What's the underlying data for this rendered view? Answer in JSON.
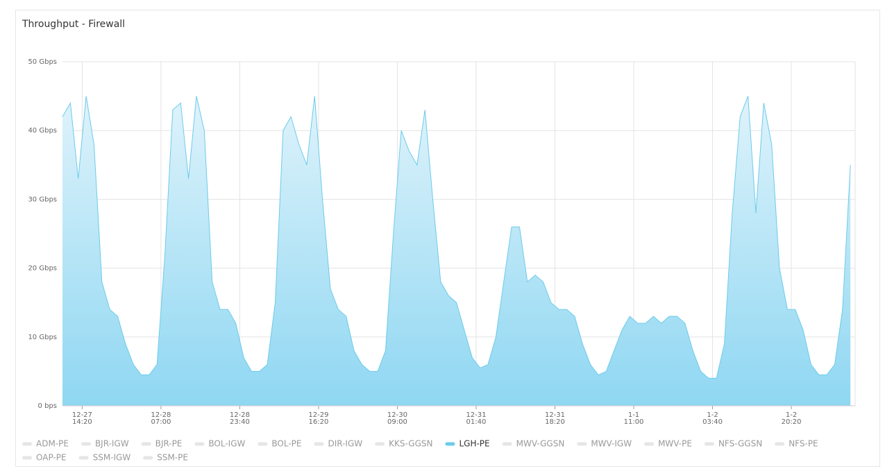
{
  "chart_data": {
    "type": "area",
    "title": "Throughput - Firewall",
    "x": [
      "12-27 10:10",
      "12-27 11:50",
      "12-27 13:30",
      "12-27 15:10",
      "12-27 16:50",
      "12-27 18:30",
      "12-27 20:10",
      "12-27 21:50",
      "12-27 23:30",
      "12-28 01:10",
      "12-28 02:50",
      "12-28 04:30",
      "12-28 06:10",
      "12-28 07:50",
      "12-28 09:30",
      "12-28 11:10",
      "12-28 12:50",
      "12-28 14:30",
      "12-28 16:10",
      "12-28 17:50",
      "12-28 19:30",
      "12-28 21:10",
      "12-28 22:50",
      "12-29 00:30",
      "12-29 02:10",
      "12-29 03:50",
      "12-29 05:30",
      "12-29 07:10",
      "12-29 08:50",
      "12-29 10:30",
      "12-29 12:10",
      "12-29 13:50",
      "12-29 15:30",
      "12-29 17:10",
      "12-29 18:50",
      "12-29 20:30",
      "12-29 22:10",
      "12-29 23:50",
      "12-30 01:30",
      "12-30 03:10",
      "12-30 04:50",
      "12-30 06:30",
      "12-30 08:10",
      "12-30 09:50",
      "12-30 11:30",
      "12-30 13:10",
      "12-30 14:50",
      "12-30 16:30",
      "12-30 18:10",
      "12-30 19:50",
      "12-30 21:30",
      "12-30 23:10",
      "12-31 00:50",
      "12-31 02:30",
      "12-31 04:10",
      "12-31 05:50",
      "12-31 07:30",
      "12-31 09:10",
      "12-31 10:50",
      "12-31 12:30",
      "12-31 14:10",
      "12-31 15:50",
      "12-31 17:30",
      "12-31 19:10",
      "12-31 20:50",
      "12-31 22:30",
      "1-1 00:10",
      "1-1 01:50",
      "1-1 03:30",
      "1-1 05:10",
      "1-1 06:50",
      "1-1 08:30",
      "1-1 10:10",
      "1-1 11:50",
      "1-1 13:30",
      "1-1 15:10",
      "1-1 16:50",
      "1-1 18:30",
      "1-1 20:10",
      "1-1 21:50",
      "1-1 23:30",
      "1-2 01:10",
      "1-2 02:50",
      "1-2 04:30",
      "1-2 06:10",
      "1-2 07:50",
      "1-2 09:30",
      "1-2 11:10",
      "1-2 12:50",
      "1-2 14:30",
      "1-2 16:10",
      "1-2 17:50",
      "1-2 19:30",
      "1-2 21:10",
      "1-2 22:50",
      "1-3 00:30",
      "1-3 02:10",
      "1-3 03:50",
      "1-3 05:30",
      "1-3 07:10",
      "1-3 08:50"
    ],
    "series": [
      {
        "name": "ADM-PE",
        "visible": false
      },
      {
        "name": "BJR-IGW",
        "visible": false
      },
      {
        "name": "BJR-PE",
        "visible": false
      },
      {
        "name": "BOL-IGW",
        "visible": false
      },
      {
        "name": "BOL-PE",
        "visible": false
      },
      {
        "name": "DIR-IGW",
        "visible": false
      },
      {
        "name": "KKS-GGSN",
        "visible": false
      },
      {
        "name": "LGH-PE",
        "visible": true,
        "color": "#6ccbea",
        "values": [
          42,
          44,
          33,
          45,
          38,
          18,
          14,
          13,
          9,
          6,
          4.5,
          4.5,
          6,
          22,
          43,
          44,
          33,
          45,
          40,
          18,
          14,
          14,
          12,
          7,
          5,
          5,
          6,
          15,
          40,
          42,
          38,
          35,
          45,
          30,
          17,
          14,
          13,
          8,
          6,
          5,
          5,
          8,
          25,
          40,
          37,
          35,
          43,
          30,
          18,
          16,
          15,
          11,
          7,
          5.5,
          6,
          10,
          18,
          26,
          26,
          18,
          19,
          18,
          15,
          14,
          14,
          13,
          9,
          6,
          4.5,
          5,
          8,
          11,
          13,
          12,
          12,
          13,
          12,
          13,
          13,
          12,
          8,
          5,
          4,
          4,
          9,
          28,
          42,
          45,
          28,
          44,
          38,
          20,
          14,
          14,
          11,
          6,
          4.5,
          4.5,
          6,
          14,
          35
        ]
      },
      {
        "name": "MWV-GGSN",
        "visible": false
      },
      {
        "name": "MWV-IGW",
        "visible": false
      },
      {
        "name": "MWV-PE",
        "visible": false
      },
      {
        "name": "NFS-GGSN",
        "visible": false
      },
      {
        "name": "NFS-PE",
        "visible": false
      },
      {
        "name": "OAP-PE",
        "visible": false
      },
      {
        "name": "SSM-IGW",
        "visible": false
      },
      {
        "name": "SSM-PE",
        "visible": false
      }
    ],
    "xlim": [
      "12-27 10:10",
      "1-3 09:50"
    ],
    "xticks": [
      {
        "value": "12-27 14:20",
        "label": [
          "12-27",
          "14:20"
        ]
      },
      {
        "value": "12-28 07:00",
        "label": [
          "12-28",
          "07:00"
        ]
      },
      {
        "value": "12-28 23:40",
        "label": [
          "12-28",
          "23:40"
        ]
      },
      {
        "value": "12-29 16:20",
        "label": [
          "12-29",
          "16:20"
        ]
      },
      {
        "value": "12-30 09:00",
        "label": [
          "12-30",
          "09:00"
        ]
      },
      {
        "value": "12-31 01:40",
        "label": [
          "12-31",
          "01:40"
        ]
      },
      {
        "value": "12-31 18:20",
        "label": [
          "12-31",
          "18:20"
        ]
      },
      {
        "value": "1-1 11:00",
        "label": [
          "1-1",
          "11:00"
        ]
      },
      {
        "value": "1-2 03:40",
        "label": [
          "1-2",
          "03:40"
        ]
      },
      {
        "value": "1-2 20:20",
        "label": [
          "1-2",
          "20:20"
        ]
      }
    ],
    "ylim": [
      0,
      50
    ],
    "yticks": [
      {
        "value": 0,
        "label": "0 bps"
      },
      {
        "value": 10,
        "label": "10 Gbps"
      },
      {
        "value": 20,
        "label": "20 Gbps"
      },
      {
        "value": 30,
        "label": "30 Gbps"
      },
      {
        "value": 40,
        "label": "40 Gbps"
      },
      {
        "value": 50,
        "label": "50 Gbps"
      }
    ],
    "grid": true
  }
}
